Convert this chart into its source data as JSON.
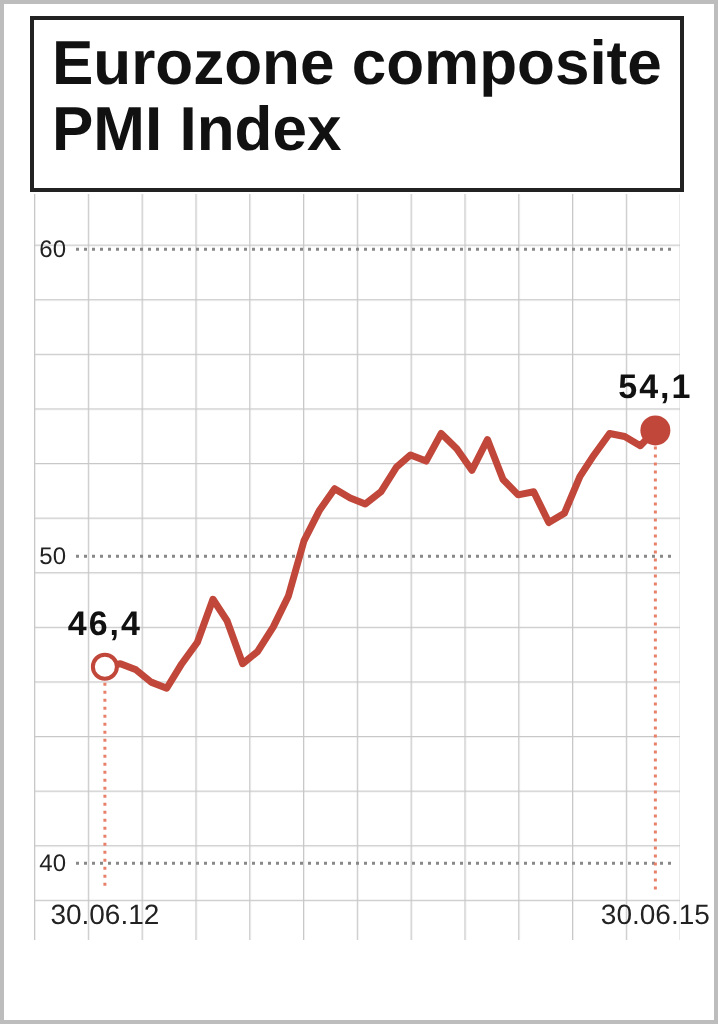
{
  "chart_data": {
    "type": "line",
    "title": "Eurozone composite PMI Index",
    "x": [
      "2012-06-30",
      "2012-07-31",
      "2012-08-31",
      "2012-09-30",
      "2012-10-31",
      "2012-11-30",
      "2012-12-31",
      "2013-01-31",
      "2013-02-28",
      "2013-03-31",
      "2013-04-30",
      "2013-05-31",
      "2013-06-30",
      "2013-07-31",
      "2013-08-31",
      "2013-09-30",
      "2013-10-31",
      "2013-11-30",
      "2013-12-31",
      "2014-01-31",
      "2014-02-28",
      "2014-03-31",
      "2014-04-30",
      "2014-05-31",
      "2014-06-30",
      "2014-07-31",
      "2014-08-31",
      "2014-09-30",
      "2014-10-31",
      "2014-11-30",
      "2014-12-31",
      "2015-01-31",
      "2015-02-28",
      "2015-03-31",
      "2015-04-30",
      "2015-05-31",
      "2015-06-30"
    ],
    "series": [
      {
        "type": "line",
        "color": "#c0473a",
        "values": [
          46.4,
          46.5,
          46.3,
          45.9,
          45.7,
          46.5,
          47.2,
          48.6,
          47.9,
          46.5,
          46.9,
          47.7,
          48.7,
          50.5,
          51.5,
          52.2,
          51.9,
          51.7,
          52.1,
          52.9,
          53.3,
          53.1,
          54.0,
          53.5,
          52.8,
          53.8,
          52.5,
          52.0,
          52.1,
          51.1,
          51.4,
          52.6,
          53.3,
          54.0,
          53.9,
          53.6,
          54.1
        ]
      },
      {
        "type": "scatter",
        "color": "#c0473a",
        "x": [
          "2012-06-30",
          "2015-06-30"
        ],
        "values": [
          46.4,
          54.1
        ],
        "marker": "circle"
      }
    ],
    "xlim": [
      "2012-02-10",
      "2015-08-18"
    ],
    "xticks": [
      {
        "value": "2012-06-30",
        "label": "30.06.12"
      },
      {
        "value": "2015-06-30",
        "label": "30.06.15"
      }
    ],
    "ylim": [
      37.5,
      61.8
    ],
    "yticks": [
      40,
      50,
      60
    ],
    "grid": "y",
    "line_style": "solid",
    "ref_lines": [
      {
        "axis": "x",
        "value": "2012-06-30",
        "color": "#e8806a",
        "line_style": "dotted"
      },
      {
        "axis": "x",
        "value": "2015-06-30",
        "color": "#e8806a",
        "line_style": "dotted"
      }
    ],
    "annotations": [
      {
        "text": "46,4",
        "x": "2012-06-30",
        "y": 46.4
      },
      {
        "text": "54,1",
        "x": "2015-06-30",
        "y": 54.1
      }
    ]
  }
}
